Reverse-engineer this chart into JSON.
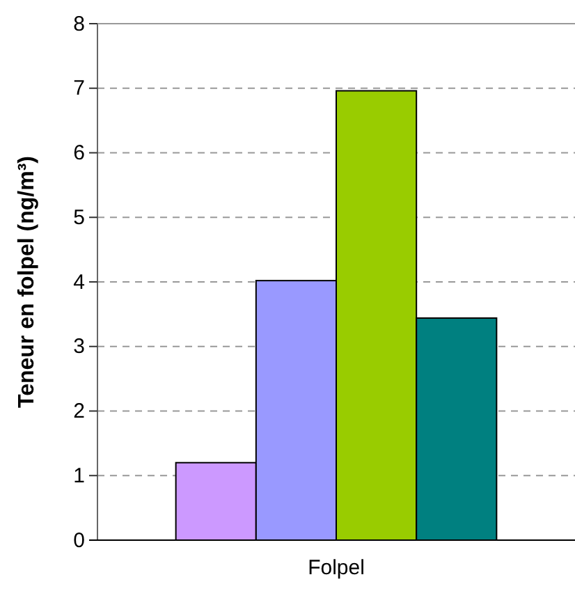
{
  "chart_data": {
    "type": "bar",
    "categories": [
      "Folpel"
    ],
    "ylabel": "Teneur en folpel (ng/m³)",
    "ylim": [
      0,
      8
    ],
    "yticks": [
      0,
      1,
      2,
      3,
      4,
      5,
      6,
      7,
      8
    ],
    "grid": "y",
    "series": [
      {
        "color": "#cc99ff",
        "values": [
          1.2
        ]
      },
      {
        "color": "#9999ff",
        "values": [
          4.02
        ]
      },
      {
        "color": "#99cc00",
        "values": [
          6.96
        ]
      },
      {
        "color": "#008080",
        "values": [
          3.44
        ]
      }
    ]
  }
}
